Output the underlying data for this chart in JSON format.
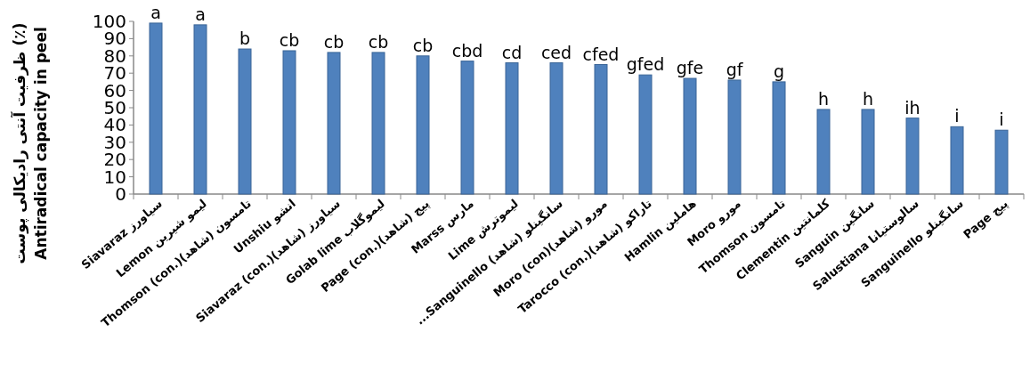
{
  "chart_data": {
    "type": "bar",
    "ylabel": "ظرفیت آنتی رادیکالی پوست (٪)\nAntiradical capacity in peel",
    "categories": [
      "Siavaraz سیاورز",
      "Lemon لیمو شیرین",
      "Thomson (con.)(شاهد) تامسون",
      "Unshiu انشو",
      "Siavaraz (con.)(شاهد) سیاورز",
      "Golab lime لیموگلاب",
      "Page (con.)(شاهد) پیج",
      "Marss مارس",
      "Lime لیموترش",
      "...Sanguinello (شاهد) سانگینلو",
      "Moro (con)(شاهد) مورو",
      "Tarocco (con.)(شاهد) تاراکو",
      "Hamlin هاملین",
      "Moro مورو",
      "Thomson تامسون",
      "Clementin کلمانتین",
      "Sanguin سانگین",
      "Salustiana سالوستیانا",
      "Sanguinello سانگینلو",
      "Page پیج"
    ],
    "values": [
      99,
      98,
      84,
      83,
      82,
      82,
      80,
      77,
      76,
      76,
      75,
      69,
      67,
      66,
      65,
      49,
      49,
      44,
      39,
      37
    ],
    "value_labels": [
      "a",
      "a",
      "b",
      "cb",
      "cb",
      "cb",
      "cb",
      "cbd",
      "cd",
      "ced",
      "cfed",
      "gfed",
      "gfe",
      "gf",
      "g",
      "h",
      "h",
      "ih",
      "i",
      "i"
    ],
    "color": "#4f81bd",
    "ylim": [
      0,
      100
    ],
    "yticks": [
      0,
      10,
      20,
      30,
      40,
      50,
      60,
      70,
      80,
      90,
      100
    ],
    "grid": false
  }
}
